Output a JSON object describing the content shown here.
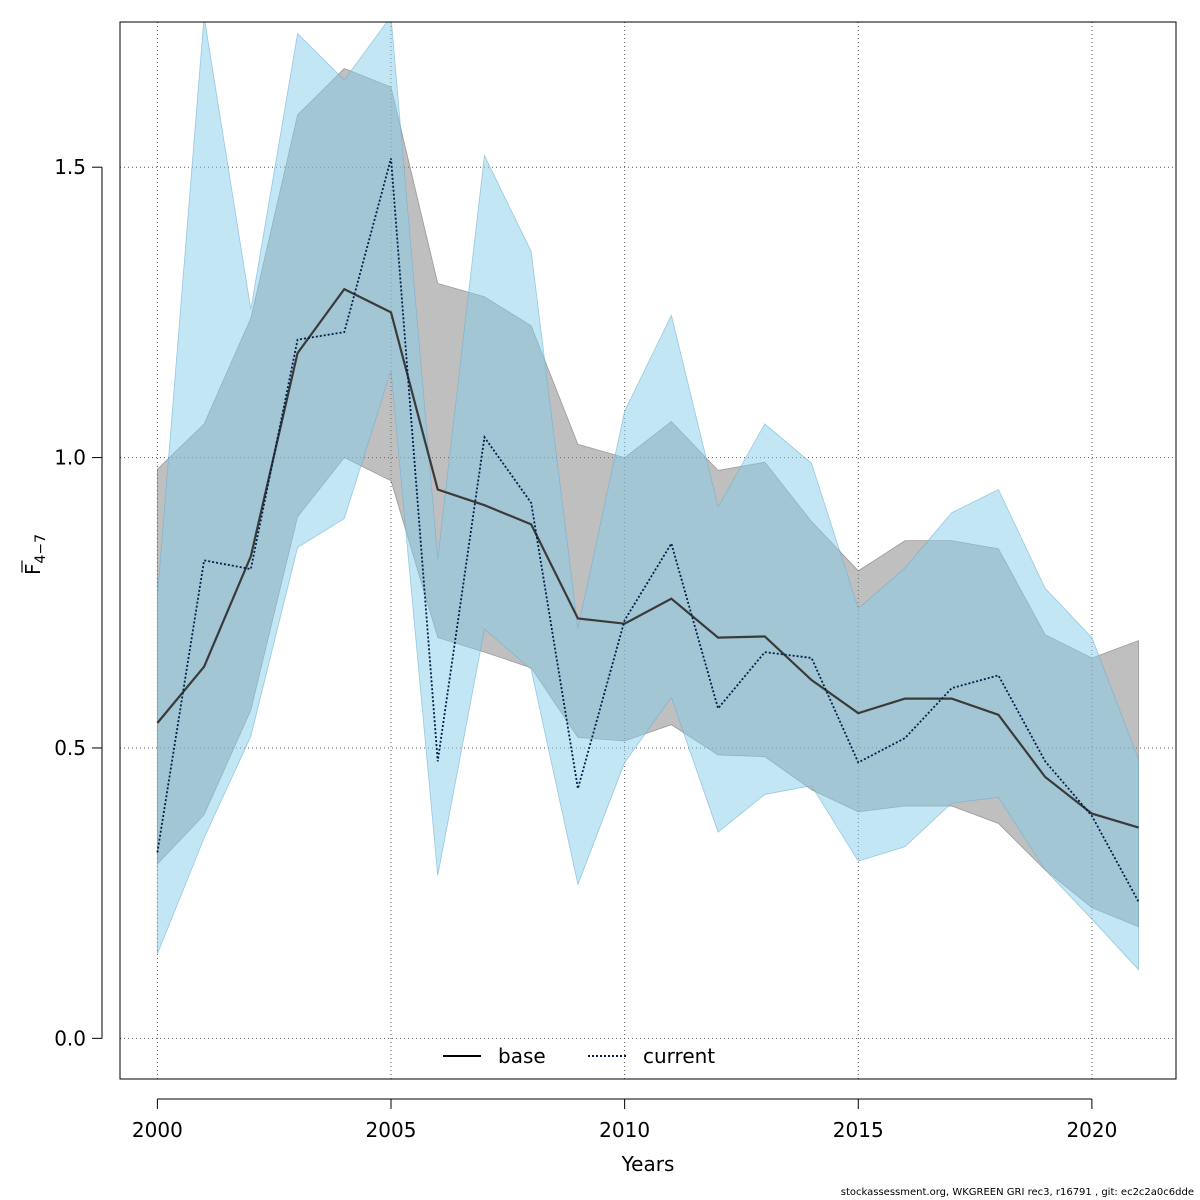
{
  "chart_data": {
    "type": "line",
    "title": "",
    "xlabel": "Years",
    "ylabel_main": "F",
    "ylabel_sub": "4−7",
    "xlim": [
      1999.2,
      2021.8
    ],
    "ylim": [
      -0.07,
      1.75
    ],
    "x_ticks": [
      2000,
      2005,
      2010,
      2015,
      2020
    ],
    "y_ticks": [
      0.0,
      0.5,
      1.0,
      1.5
    ],
    "y_tick_labels": [
      "0.0",
      "0.5",
      "1.0",
      "1.5"
    ],
    "grid": true,
    "legend_position": "bottom-center",
    "x": [
      2000,
      2001,
      2002,
      2003,
      2004,
      2005,
      2006,
      2007,
      2008,
      2009,
      2010,
      2011,
      2012,
      2013,
      2014,
      2015,
      2016,
      2017,
      2018,
      2019,
      2020,
      2021
    ],
    "series": [
      {
        "name": "base",
        "color": "#000000",
        "band_color": "#808080",
        "line_style": "solid",
        "values": [
          0.543,
          0.64,
          0.83,
          1.18,
          1.29,
          1.25,
          0.945,
          0.918,
          0.885,
          0.723,
          0.714,
          0.757,
          0.69,
          0.692,
          0.617,
          0.56,
          0.585,
          0.585,
          0.557,
          0.45,
          0.387,
          0.363
        ],
        "lower": [
          0.3,
          0.385,
          0.565,
          0.898,
          1.0,
          0.96,
          0.69,
          0.665,
          0.638,
          0.518,
          0.512,
          0.54,
          0.488,
          0.485,
          0.428,
          0.39,
          0.4,
          0.4,
          0.37,
          0.29,
          0.225,
          0.192
        ],
        "upper": [
          0.98,
          1.058,
          1.24,
          1.59,
          1.67,
          1.638,
          1.3,
          1.277,
          1.227,
          1.023,
          1.0,
          1.062,
          0.978,
          0.992,
          0.89,
          0.805,
          0.857,
          0.857,
          0.843,
          0.695,
          0.655,
          0.685
        ]
      },
      {
        "name": "current",
        "color": "#00204a",
        "band_color": "#87ceeb",
        "line_style": "dotted",
        "values": [
          0.32,
          0.823,
          0.808,
          1.203,
          1.216,
          1.515,
          0.477,
          1.035,
          0.922,
          0.43,
          0.72,
          0.852,
          0.568,
          0.665,
          0.655,
          0.475,
          0.517,
          0.603,
          0.625,
          0.477,
          0.383,
          0.235
        ],
        "lower": [
          0.145,
          0.345,
          0.52,
          0.845,
          0.895,
          1.15,
          0.28,
          0.705,
          0.635,
          0.265,
          0.475,
          0.587,
          0.355,
          0.42,
          0.435,
          0.305,
          0.33,
          0.405,
          0.415,
          0.29,
          0.205,
          0.118
        ],
        "upper": [
          0.76,
          1.76,
          1.255,
          1.73,
          1.65,
          1.76,
          0.825,
          1.52,
          1.355,
          0.705,
          1.08,
          1.245,
          0.915,
          1.058,
          0.99,
          0.74,
          0.81,
          0.905,
          0.945,
          0.775,
          0.69,
          0.48
        ]
      }
    ],
    "footer": "stockassessment.org, WKGREEN GRI rec3, r16791 , git: ec2c2a0c6dde"
  }
}
